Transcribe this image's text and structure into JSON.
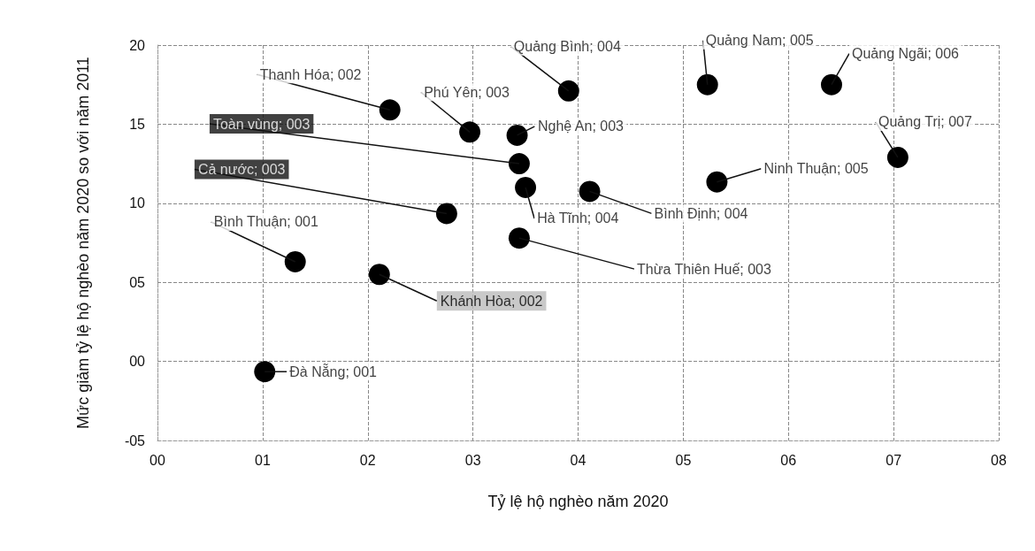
{
  "chart_data": {
    "type": "scatter",
    "xlabel": "Tỷ lệ hộ nghèo năm 2020",
    "ylabel": "Mức giảm tỷ lệ hộ nghèo năm 2020 so với năm 2011",
    "x": [
      2.21,
      2.97,
      3.91,
      5.23,
      6.41,
      3.42,
      3.44,
      7.04,
      5.32,
      2.75,
      3.5,
      4.11,
      1.31,
      3.44,
      2.11,
      1.02
    ],
    "values": [
      15.9,
      14.5,
      17.1,
      17.5,
      17.5,
      14.3,
      12.5,
      12.9,
      11.35,
      9.35,
      11.0,
      10.75,
      6.3,
      7.8,
      5.5,
      -0.65
    ],
    "color": "#000000",
    "marker": "circle",
    "grid": true,
    "xlim": [
      0,
      8
    ],
    "xticks": [
      {
        "value": 0,
        "label": "00"
      },
      {
        "value": 1,
        "label": "01"
      },
      {
        "value": 2,
        "label": "02"
      },
      {
        "value": 3,
        "label": "03"
      },
      {
        "value": 4,
        "label": "04"
      },
      {
        "value": 5,
        "label": "05"
      },
      {
        "value": 6,
        "label": "06"
      },
      {
        "value": 7,
        "label": "07"
      },
      {
        "value": 8,
        "label": "08"
      }
    ],
    "ylim": [
      -5,
      20
    ],
    "yticks": [
      {
        "value": -5,
        "label": "-05"
      },
      {
        "value": 0,
        "label": "00"
      },
      {
        "value": 5,
        "label": "05"
      },
      10,
      15,
      20
    ],
    "annotations": [
      {
        "text": "Thanh Hóa; 002",
        "x": 2.21,
        "y": 15.9
      },
      {
        "text": "Phú Yên; 003",
        "x": 2.97,
        "y": 14.5
      },
      {
        "text": "Quảng Bình; 004",
        "x": 3.91,
        "y": 17.1
      },
      {
        "text": "Quảng Nam; 005",
        "x": 5.23,
        "y": 17.5
      },
      {
        "text": "Quảng Ngãi; 006",
        "x": 6.41,
        "y": 17.5
      },
      {
        "text": "Nghệ An; 003",
        "x": 3.42,
        "y": 14.3
      },
      {
        "text": "Toàn vùng; 003",
        "x": 3.44,
        "y": 12.5
      },
      {
        "text": "Quảng Trị; 007",
        "x": 7.04,
        "y": 12.9
      },
      {
        "text": "Ninh Thuận; 005",
        "x": 5.32,
        "y": 11.35
      },
      {
        "text": "Cả nước; 003",
        "x": 2.75,
        "y": 9.35
      },
      {
        "text": "Hà Tĩnh; 004",
        "x": 3.5,
        "y": 11.0
      },
      {
        "text": "Bình Định; 004",
        "x": 4.11,
        "y": 10.75
      },
      {
        "text": "Bình Thuận; 001",
        "x": 1.31,
        "y": 6.3
      },
      {
        "text": "Thừa Thiên Huế; 003",
        "x": 3.44,
        "y": 7.8
      },
      {
        "text": "Khánh Hòa; 002",
        "x": 2.11,
        "y": 5.5
      },
      {
        "text": "Đà Nẵng; 001",
        "x": 1.02,
        "y": -0.65
      }
    ]
  }
}
